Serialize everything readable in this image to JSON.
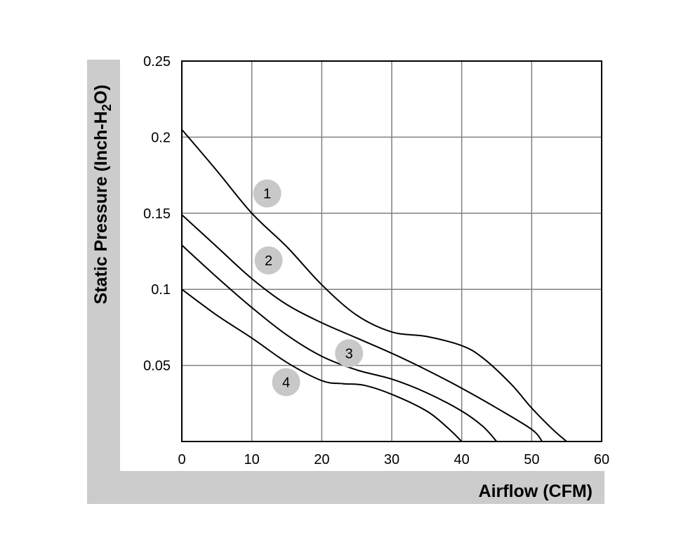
{
  "chart_data": {
    "type": "line",
    "xlabel": "Airflow (CFM)",
    "ylabel_prefix": "Static Pressure (Inch-H",
    "ylabel_sub": "2",
    "ylabel_suffix": "O)",
    "xlim": [
      0,
      60
    ],
    "ylim": [
      0,
      0.25
    ],
    "x_ticks": [
      0,
      10,
      20,
      30,
      40,
      50,
      60
    ],
    "x_tick_labels": [
      "0",
      "10",
      "20",
      "30",
      "40",
      "50",
      "60"
    ],
    "y_ticks": [
      0.05,
      0.1,
      0.15,
      0.2,
      0.25
    ],
    "y_tick_labels": [
      "0.05",
      "0.1",
      "0.15",
      "0.2",
      "0.25"
    ],
    "grid": true,
    "series": [
      {
        "name": "1",
        "label_at": [
          12.2,
          0.163
        ],
        "points": [
          [
            0,
            0.205
          ],
          [
            5,
            0.178
          ],
          [
            10,
            0.15
          ],
          [
            15,
            0.128
          ],
          [
            20,
            0.103
          ],
          [
            25,
            0.083
          ],
          [
            30,
            0.072
          ],
          [
            35,
            0.069
          ],
          [
            40,
            0.063
          ],
          [
            43,
            0.055
          ],
          [
            47,
            0.038
          ],
          [
            50,
            0.022
          ],
          [
            53,
            0.008
          ],
          [
            55,
            0
          ]
        ]
      },
      {
        "name": "2",
        "label_at": [
          12.4,
          0.119
        ],
        "points": [
          [
            0,
            0.149
          ],
          [
            5,
            0.128
          ],
          [
            10,
            0.107
          ],
          [
            15,
            0.09
          ],
          [
            20,
            0.078
          ],
          [
            25,
            0.068
          ],
          [
            30,
            0.058
          ],
          [
            35,
            0.047
          ],
          [
            40,
            0.035
          ],
          [
            45,
            0.022
          ],
          [
            50,
            0.008
          ],
          [
            51.5,
            0
          ]
        ]
      },
      {
        "name": "3",
        "label_at": [
          23.9,
          0.058
        ],
        "points": [
          [
            0,
            0.129
          ],
          [
            5,
            0.108
          ],
          [
            10,
            0.088
          ],
          [
            15,
            0.07
          ],
          [
            20,
            0.056
          ],
          [
            25,
            0.047
          ],
          [
            30,
            0.041
          ],
          [
            35,
            0.032
          ],
          [
            40,
            0.02
          ],
          [
            43,
            0.01
          ],
          [
            45,
            0
          ]
        ]
      },
      {
        "name": "4",
        "label_at": [
          14.9,
          0.039
        ],
        "points": [
          [
            0,
            0.1
          ],
          [
            5,
            0.083
          ],
          [
            10,
            0.068
          ],
          [
            15,
            0.052
          ],
          [
            20,
            0.04
          ],
          [
            23,
            0.038
          ],
          [
            26,
            0.037
          ],
          [
            30,
            0.031
          ],
          [
            35,
            0.02
          ],
          [
            38,
            0.009
          ],
          [
            40,
            0
          ]
        ]
      }
    ]
  }
}
